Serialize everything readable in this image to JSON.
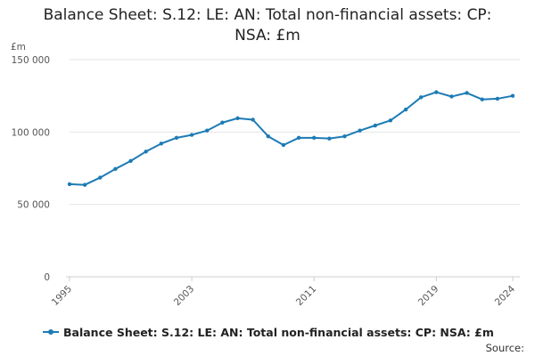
{
  "colors": {
    "series": "#1c7bb5",
    "grid": "#e6e6e6",
    "axis": "#cccccc"
  },
  "chart_data": {
    "type": "line",
    "title": "Balance Sheet: S.12: LE: AN: Total non-financial assets: CP:\nNSA: £m",
    "ylabel": "£m",
    "xlabel": "",
    "ylim": [
      0,
      150000
    ],
    "xlim": [
      1995,
      2024
    ],
    "grid": true,
    "legend_position": "bottom",
    "y_ticks": [
      {
        "value": 0,
        "label": "0"
      },
      {
        "value": 50000,
        "label": "50 000"
      },
      {
        "value": 100000,
        "label": "100 000"
      },
      {
        "value": 150000,
        "label": "150 000"
      }
    ],
    "x_ticks": [
      {
        "value": 1995,
        "label": "1995"
      },
      {
        "value": 2003,
        "label": "2003"
      },
      {
        "value": 2011,
        "label": "2011"
      },
      {
        "value": 2019,
        "label": "2019"
      },
      {
        "value": 2024,
        "label": "2024"
      }
    ],
    "series": [
      {
        "name": "Balance Sheet: S.12: LE: AN: Total non-financial assets: CP: NSA: £m",
        "x": [
          1995,
          1996,
          1997,
          1998,
          1999,
          2000,
          2001,
          2002,
          2003,
          2004,
          2005,
          2006,
          2007,
          2008,
          2009,
          2010,
          2011,
          2012,
          2013,
          2014,
          2015,
          2016,
          2017,
          2018,
          2019,
          2020,
          2021,
          2022,
          2023,
          2024
        ],
        "values": [
          64000,
          63500,
          68500,
          74500,
          80000,
          86500,
          92000,
          96000,
          98000,
          101000,
          106500,
          109500,
          108500,
          97000,
          91000,
          96000,
          96000,
          95500,
          97000,
          101000,
          104500,
          108000,
          115500,
          124000,
          127500,
          124500,
          127000,
          122500,
          123000,
          125000
        ]
      }
    ]
  },
  "legend": {
    "label": "Balance Sheet: S.12: LE: AN: Total non-financial assets: CP: NSA: £m"
  },
  "footer": {
    "source_label": "Source:"
  }
}
